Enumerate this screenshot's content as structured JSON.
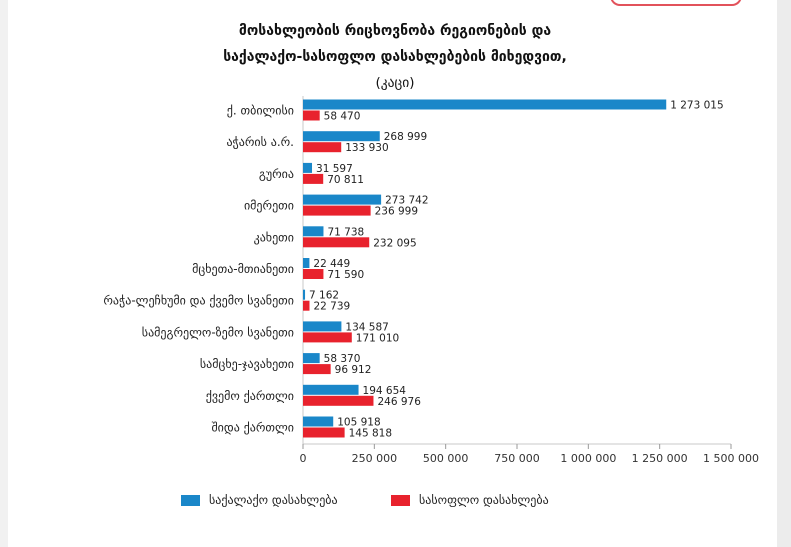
{
  "title": {
    "line1": "მოსახლეობის რიცხოვნობა რეგიონების და",
    "line2": "საქალაქო-სასოფლო დასახლებების მიხედვით,",
    "line3": "(კაცი)"
  },
  "colors": {
    "urban": "#1a87c9",
    "rural": "#e8222d",
    "axis": "#333333",
    "grid": "#d9d9d9"
  },
  "chart_data": {
    "type": "bar",
    "orientation": "horizontal",
    "title": "მოსახლეობის რიცხოვნობა რეგიონების და საქალაქო-სასოფლო დასახლებების მიხედვით, (კაცი)",
    "categories": [
      "ქ. თბილისი",
      "აჭარის ა.რ.",
      "გურია",
      "იმერეთი",
      "კახეთი",
      "მცხეთა-მთიანეთი",
      "რაჭა-ლეჩხუმი და ქვემო სვანეთი",
      "სამეგრელო-ზემო სვანეთი",
      "სამცხე-ჯავახეთი",
      "ქვემო ქართლი",
      "შიდა ქართლი"
    ],
    "series": [
      {
        "name": "საქალაქო დასახლება",
        "values": [
          1273015,
          268999,
          31597,
          273742,
          71738,
          22449,
          7162,
          134587,
          58370,
          194654,
          105918
        ],
        "labels": [
          "1 273 015",
          "268 999",
          "31 597",
          "273 742",
          "71 738",
          "22 449",
          "7 162",
          "134 587",
          "58 370",
          "194 654",
          "105 918"
        ]
      },
      {
        "name": "სასოფლო დასახლება",
        "values": [
          58470,
          133930,
          70811,
          236999,
          232095,
          71590,
          22739,
          171010,
          96912,
          246976,
          145818
        ],
        "labels": [
          "58 470",
          "133 930",
          "70 811",
          "236 999",
          "232 095",
          "71 590",
          "22 739",
          "171 010",
          "96 912",
          "246 976",
          "145 818"
        ]
      }
    ],
    "xlim": [
      0,
      1500000
    ],
    "xticks": [
      0,
      250000,
      500000,
      750000,
      1000000,
      1250000,
      1500000
    ],
    "xtick_labels": [
      "0",
      "250 000",
      "500 000",
      "750 000",
      "1 000 000",
      "1 250 000",
      "1 500 000"
    ],
    "xlabel": "",
    "ylabel": "",
    "legend_position": "bottom"
  },
  "legend": {
    "urban_label": "საქალაქო დასახლება",
    "rural_label": "სასოფლო დასახლება"
  }
}
